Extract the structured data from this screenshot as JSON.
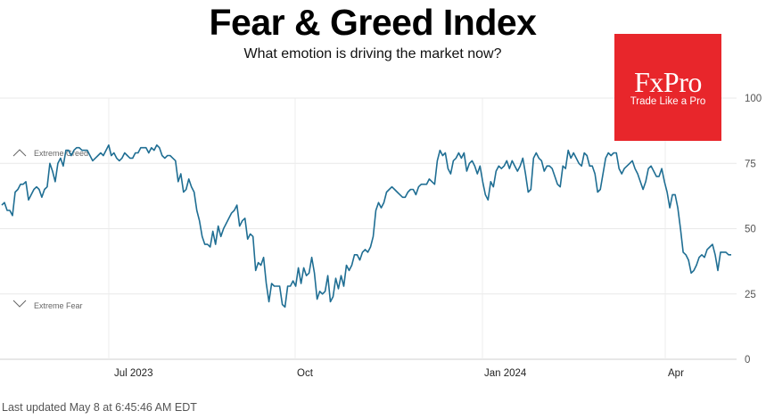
{
  "header": {
    "title": "Fear & Greed Index",
    "subtitle": "What emotion is driving the market now?"
  },
  "logo": {
    "name": "FxPro",
    "tagline": "Trade Like a Pro",
    "color": "#e8262b"
  },
  "footer": {
    "updated": "Last updated May 8 at 6:45:46 AM EDT"
  },
  "zones": {
    "greed_label": "Extreme Greed",
    "fear_label": "Extreme Fear"
  },
  "chart_data": {
    "type": "line",
    "title": "Fear & Greed Index",
    "xlabel": "",
    "ylabel": "",
    "ylim": [
      0,
      100
    ],
    "y_ticks": [
      "0",
      "25",
      "50",
      "75",
      "100"
    ],
    "x_ticks": [
      "Jul 2023",
      "Oct",
      "Jan 2024",
      "Apr"
    ],
    "color": "#1f6e93",
    "series": [
      {
        "name": "Fear & Greed Index",
        "values": [
          59,
          60,
          57,
          57,
          55,
          64,
          65,
          67,
          67,
          68,
          61,
          63,
          65,
          66,
          65,
          62,
          65,
          66,
          75,
          72,
          68,
          75,
          77,
          74,
          80,
          80,
          78,
          80,
          81,
          81,
          80,
          80,
          80,
          78,
          76,
          77,
          78,
          79,
          78,
          80,
          82,
          78,
          79,
          77,
          76,
          77,
          79,
          78,
          77,
          77,
          79,
          79,
          81,
          81,
          81,
          79,
          81,
          80,
          82,
          81,
          78,
          77,
          78,
          78,
          77,
          76,
          68,
          71,
          64,
          65,
          69,
          66,
          64,
          57,
          53,
          47,
          44,
          44,
          43,
          49,
          44,
          51,
          47,
          50,
          52,
          54,
          56,
          57,
          59,
          51,
          53,
          54,
          46,
          48,
          47,
          34,
          37,
          36,
          39,
          29,
          22,
          29,
          28,
          28,
          28,
          21,
          20,
          28,
          28,
          30,
          28,
          35,
          29,
          35,
          32,
          33,
          39,
          33,
          23,
          26,
          25,
          26,
          32,
          22,
          24,
          31,
          27,
          32,
          28,
          36,
          34,
          36,
          40,
          40,
          38,
          41,
          42,
          41,
          43,
          47,
          57,
          60,
          58,
          60,
          64,
          65,
          66,
          65,
          64,
          63,
          62,
          62,
          64,
          65,
          65,
          63,
          66,
          67,
          67,
          67,
          69,
          68,
          67,
          76,
          80,
          78,
          79,
          73,
          71,
          76,
          77,
          79,
          77,
          79,
          72,
          75,
          76,
          74,
          71,
          74,
          68,
          63,
          61,
          68,
          66,
          72,
          74,
          73,
          74,
          76,
          73,
          76,
          74,
          72,
          74,
          77,
          71,
          64,
          65,
          77,
          79,
          77,
          76,
          72,
          74,
          74,
          73,
          70,
          67,
          66,
          74,
          73,
          80,
          77,
          79,
          77,
          75,
          74,
          79,
          78,
          74,
          74,
          71,
          64,
          65,
          71,
          77,
          79,
          78,
          79,
          79,
          73,
          71,
          73,
          74,
          75,
          76,
          73,
          71,
          68,
          65,
          68,
          73,
          74,
          72,
          70,
          70,
          73,
          68,
          64,
          58,
          63,
          63,
          58,
          50,
          41,
          40,
          38,
          33,
          34,
          36,
          39,
          40,
          39,
          42,
          43,
          44,
          40,
          34,
          41,
          41,
          41,
          40,
          40
        ]
      }
    ]
  }
}
